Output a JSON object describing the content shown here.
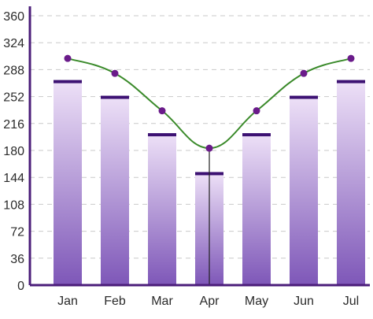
{
  "chart_data": {
    "type": "bar",
    "categories": [
      "Jan",
      "Feb",
      "Mar",
      "Apr",
      "May",
      "Jun",
      "Jul"
    ],
    "series": [
      {
        "type": "bar",
        "values": [
          272,
          251,
          201,
          149,
          201,
          251,
          272
        ]
      },
      {
        "type": "line",
        "values": [
          303,
          283,
          233,
          183,
          233,
          283,
          303
        ]
      }
    ],
    "y_ticks": [
      0,
      36,
      72,
      108,
      144,
      180,
      216,
      252,
      288,
      324,
      360
    ],
    "ylim": [
      0,
      360
    ],
    "grid": true,
    "highlight_category": "Apr",
    "colors": {
      "bar_top": "#ede0f7",
      "bar_bottom": "#7e57b8",
      "bar_cap": "#3d1273",
      "line": "#3a8a2a",
      "marker": "#6a1b8a",
      "axis": "#4b1d7a",
      "grid": "#c9c9c9",
      "crosshair": "#222222"
    }
  }
}
